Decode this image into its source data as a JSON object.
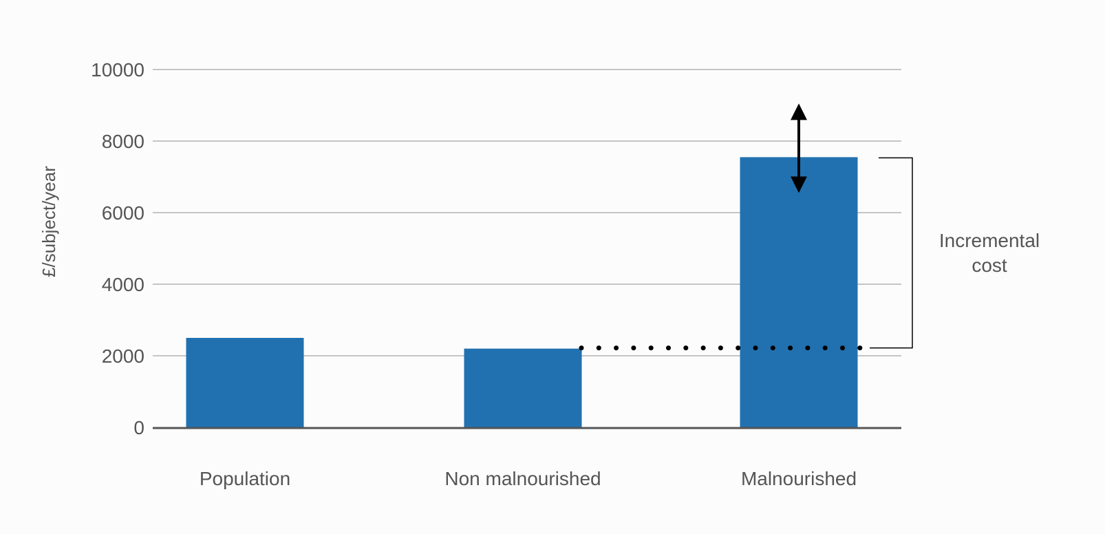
{
  "chart_data": {
    "type": "bar",
    "title": "",
    "xlabel": "",
    "ylabel": "£/subject/year",
    "ylim": [
      0,
      10000
    ],
    "yticks": [
      0,
      2000,
      4000,
      6000,
      8000,
      10000
    ],
    "ytick_labels": [
      "0",
      "2000",
      "4000",
      "6000",
      "8000",
      "10000"
    ],
    "categories": [
      "Population",
      "Non malnourished",
      "Malnourished"
    ],
    "values": [
      2500,
      2200,
      7550
    ],
    "grid": true,
    "legend": "none",
    "colors": {
      "bar": "#2171b0",
      "grid": "#8c8c8c",
      "axis": "#555555",
      "text": "#555555",
      "annotation": "#000000"
    },
    "annotations": {
      "bracket_label_line1": "Incremental",
      "bracket_label_line2": "cost",
      "bracket_from_value": 2200,
      "bracket_to_value": 7550,
      "double_arrow_top_value": 9300,
      "double_arrow_bottom_value": 6300,
      "dotted_line_value": 2200
    }
  }
}
